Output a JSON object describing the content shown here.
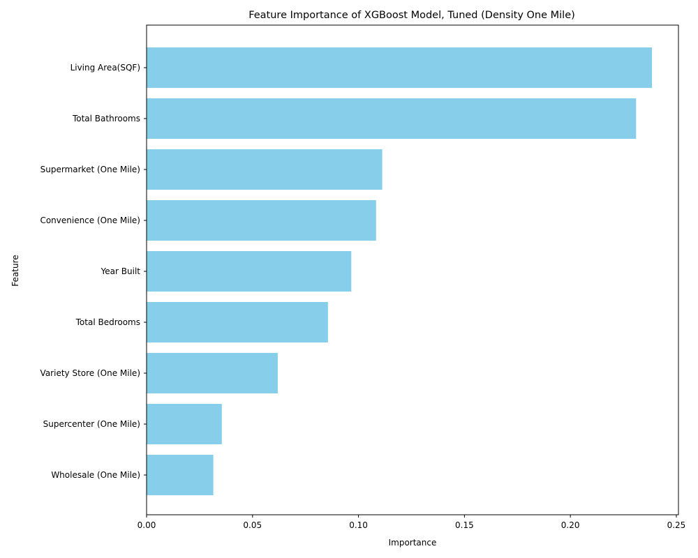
{
  "chart_data": {
    "type": "bar",
    "orientation": "horizontal",
    "title": "Feature Importance of XGBoost Model, Tuned (Density One Mile)",
    "xlabel": "Importance",
    "ylabel": "Feature",
    "categories": [
      "Living Area(SQF)",
      "Total Bathrooms",
      "Supermarket (One Mile)",
      "Convenience (One Mile)",
      "Year Built",
      "Total Bedrooms",
      "Variety Store (One Mile)",
      "Supercenter (One Mile)",
      "Wholesale (One Mile)"
    ],
    "values": [
      0.2385,
      0.231,
      0.1112,
      0.1083,
      0.0966,
      0.0856,
      0.0619,
      0.0355,
      0.0315
    ],
    "xlim": [
      0,
      0.251
    ],
    "xticks": [
      0.0,
      0.05,
      0.1,
      0.15,
      0.2,
      0.25
    ],
    "xtick_labels": [
      "0.00",
      "0.05",
      "0.10",
      "0.15",
      "0.20",
      "0.25"
    ],
    "bar_color": "#87ceeb",
    "grid": false,
    "legend": "none"
  }
}
